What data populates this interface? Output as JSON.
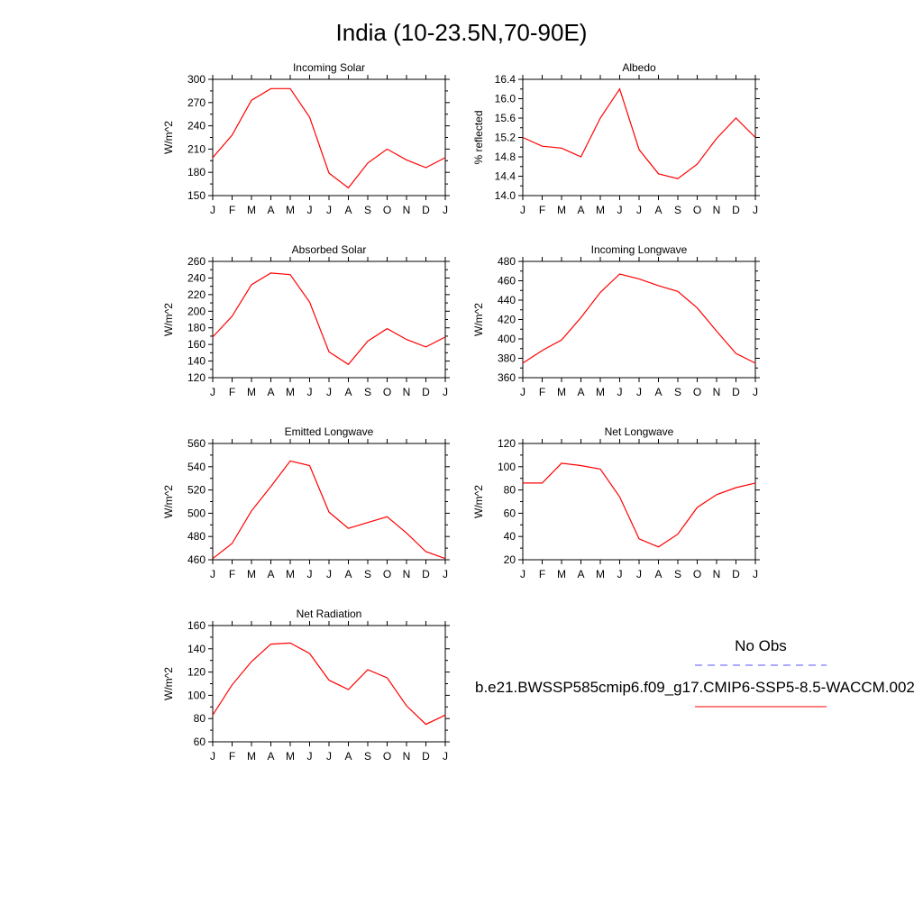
{
  "title": "India (10-23.5N,70-90E)",
  "months": [
    "J",
    "F",
    "M",
    "A",
    "M",
    "J",
    "J",
    "A",
    "S",
    "O",
    "N",
    "D",
    "J"
  ],
  "legend": {
    "obs_label": "No Obs",
    "obs_color": "#5555ff",
    "model_label": "b.e21.BWSSP585cmip6.f09_g17.CMIP6-SSP5-8.5-WACCM.002",
    "model_color": "#ff0000"
  },
  "chart_data": [
    {
      "type": "line",
      "title": "Incoming Solar",
      "ylabel": "W/m^2",
      "ylim": [
        150,
        300
      ],
      "yticks": [
        "150",
        "180",
        "210",
        "240",
        "270",
        "300"
      ],
      "x": [
        "J",
        "F",
        "M",
        "A",
        "M",
        "J",
        "J",
        "A",
        "S",
        "O",
        "N",
        "D",
        "J"
      ],
      "series": [
        {
          "values": [
            199,
            228,
            273,
            288,
            288,
            251,
            179,
            160,
            192,
            210,
            196,
            186,
            199
          ]
        }
      ]
    },
    {
      "type": "line",
      "title": "Albedo",
      "ylabel": "% reflected",
      "ylim": [
        14.0,
        16.4
      ],
      "yticks": [
        "14.0",
        "14.4",
        "14.8",
        "15.2",
        "15.6",
        "16.0",
        "16.4"
      ],
      "x": [
        "J",
        "F",
        "M",
        "A",
        "M",
        "J",
        "J",
        "A",
        "S",
        "O",
        "N",
        "D",
        "J"
      ],
      "series": [
        {
          "values": [
            15.2,
            15.02,
            14.98,
            14.8,
            15.6,
            16.2,
            14.95,
            14.45,
            14.35,
            14.65,
            15.18,
            15.6,
            15.2
          ]
        }
      ]
    },
    {
      "type": "line",
      "title": "Absorbed Solar",
      "ylabel": "W/m^2",
      "ylim": [
        120,
        260
      ],
      "yticks": [
        "120",
        "140",
        "160",
        "180",
        "200",
        "220",
        "240",
        "260"
      ],
      "x": [
        "J",
        "F",
        "M",
        "A",
        "M",
        "J",
        "J",
        "A",
        "S",
        "O",
        "N",
        "D",
        "J"
      ],
      "series": [
        {
          "values": [
            169,
            194,
            232,
            246,
            244,
            211,
            151,
            136,
            164,
            179,
            166,
            157,
            169
          ]
        }
      ]
    },
    {
      "type": "line",
      "title": "Incoming Longwave",
      "ylabel": "W/m^2",
      "ylim": [
        360,
        480
      ],
      "yticks": [
        "360",
        "380",
        "400",
        "420",
        "440",
        "460",
        "480"
      ],
      "x": [
        "J",
        "F",
        "M",
        "A",
        "M",
        "J",
        "J",
        "A",
        "S",
        "O",
        "N",
        "D",
        "J"
      ],
      "series": [
        {
          "values": [
            375,
            388,
            399,
            422,
            448,
            467,
            462,
            455,
            449,
            432,
            408,
            385,
            375
          ]
        }
      ]
    },
    {
      "type": "line",
      "title": "Emitted Longwave",
      "ylabel": "W/m^2",
      "ylim": [
        460,
        560
      ],
      "yticks": [
        "460",
        "480",
        "500",
        "520",
        "540",
        "560"
      ],
      "x": [
        "J",
        "F",
        "M",
        "A",
        "M",
        "J",
        "J",
        "A",
        "S",
        "O",
        "N",
        "D",
        "J"
      ],
      "series": [
        {
          "values": [
            461,
            474,
            502,
            523,
            545,
            541,
            501,
            487,
            492,
            497,
            483,
            467,
            461
          ]
        }
      ]
    },
    {
      "type": "line",
      "title": "Net Longwave",
      "ylabel": "W/m^2",
      "ylim": [
        20,
        120
      ],
      "yticks": [
        "20",
        "40",
        "60",
        "80",
        "100",
        "120"
      ],
      "x": [
        "J",
        "F",
        "M",
        "A",
        "M",
        "J",
        "J",
        "A",
        "S",
        "O",
        "N",
        "D",
        "J"
      ],
      "series": [
        {
          "values": [
            86,
            86,
            103,
            101,
            98,
            74,
            38,
            31,
            42,
            65,
            76,
            82,
            86
          ]
        }
      ]
    },
    {
      "type": "line",
      "title": "Net Radiation",
      "ylabel": "W/m^2",
      "ylim": [
        60,
        160
      ],
      "yticks": [
        "60",
        "80",
        "100",
        "120",
        "140",
        "160"
      ],
      "x": [
        "J",
        "F",
        "M",
        "A",
        "M",
        "J",
        "J",
        "A",
        "S",
        "O",
        "N",
        "D",
        "J"
      ],
      "series": [
        {
          "values": [
            83,
            109,
            129,
            144,
            145,
            136,
            113,
            105,
            122,
            115,
            91,
            75,
            83
          ]
        }
      ]
    }
  ]
}
